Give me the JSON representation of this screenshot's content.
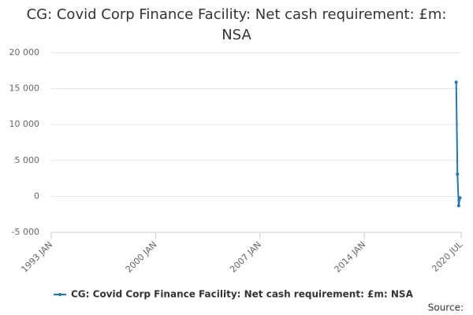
{
  "chart_data": {
    "type": "line",
    "title": "CG: Covid Corp Finance Facility: Net cash requirement: £m: NSA",
    "x": [
      "2020 MAR",
      "2020 APR",
      "2020 MAY",
      "2020 JUN"
    ],
    "series": [
      {
        "name": "CG: Covid Corp Finance Facility: Net cash requirement: £m: NSA",
        "color": "#1f78b4",
        "values": [
          15900,
          3100,
          -1300,
          -200
        ]
      }
    ],
    "xticks": [
      "1993 JAN",
      "2000 JAN",
      "2007 JAN",
      "2014 JAN",
      "2020 JUL"
    ],
    "ylim": [
      -5000,
      20000
    ],
    "yticks": [
      {
        "value": -5000,
        "label": "-5 000"
      },
      0,
      {
        "value": 5000,
        "label": "5 000"
      },
      {
        "value": 10000,
        "label": "10 000"
      },
      {
        "value": 15000,
        "label": "15 000"
      },
      {
        "value": 20000,
        "label": "20 000"
      }
    ],
    "grid": true,
    "source_label": "Source:"
  }
}
